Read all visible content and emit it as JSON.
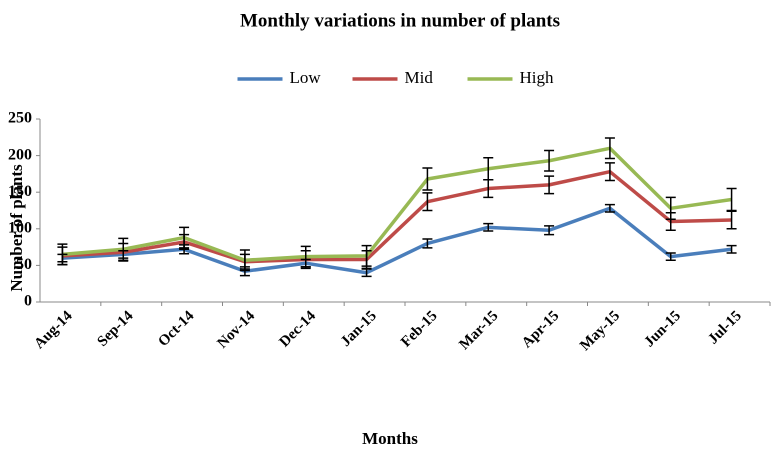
{
  "chart_data": {
    "type": "line",
    "title": "Monthly variations in number of plants",
    "x_label": "Months",
    "y_label": "Number of plants",
    "categories": [
      "Aug-14",
      "Sep-14",
      "Oct-14",
      "Nov-14",
      "Dec-14",
      "Jan-15",
      "Feb-15",
      "Mar-15",
      "Apr-15",
      "May-15",
      "Jun-15",
      "Jul-15"
    ],
    "series": [
      {
        "name": "Low",
        "color": "#4a7ebb",
        "values": [
          60,
          65,
          72,
          42,
          53,
          40,
          80,
          102,
          98,
          128,
          62,
          72
        ],
        "errors": [
          5,
          5,
          6,
          6,
          5,
          5,
          6,
          5,
          6,
          5,
          5,
          5
        ]
      },
      {
        "name": "Mid",
        "color": "#be4b48",
        "values": [
          63,
          68,
          82,
          55,
          58,
          58,
          137,
          155,
          160,
          178,
          110,
          112
        ],
        "errors": [
          12,
          12,
          10,
          10,
          12,
          12,
          12,
          12,
          12,
          12,
          12,
          12
        ]
      },
      {
        "name": "High",
        "color": "#98b954",
        "values": [
          65,
          72,
          88,
          57,
          62,
          63,
          168,
          182,
          193,
          210,
          128,
          140
        ],
        "errors": [
          14,
          15,
          14,
          14,
          14,
          14,
          15,
          15,
          14,
          14,
          15,
          15
        ]
      }
    ],
    "ylim": [
      0,
      250
    ],
    "yticks": [
      0,
      50,
      100,
      150,
      200,
      250
    ],
    "grid": false,
    "legend": "top"
  }
}
